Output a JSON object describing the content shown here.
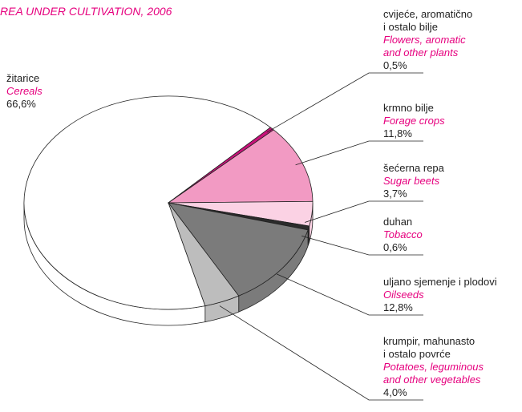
{
  "chart_data": {
    "type": "pie",
    "title": "REA UNDER CULTIVATION, 2006",
    "categories": [
      "žitarice",
      "cvijeće, aromatično\ni ostalo bilje",
      "krmno bilje",
      "šećerna repa",
      "duhan",
      "uljano sjemenje i plodovi",
      "krumpir, mahunasto\ni ostalo povrće"
    ],
    "categories_en": [
      "Cereals",
      "Flowers, aromatic\nand other plants",
      "Forage crops",
      "Sugar beets",
      "Tobacco",
      "Oilseeds",
      "Potatoes, leguminous\nand other vegetables"
    ],
    "values": [
      66.6,
      0.5,
      11.8,
      3.7,
      0.6,
      12.8,
      4.0
    ],
    "value_labels": [
      "66,6%",
      "0,5%",
      "11,8%",
      "3,7%",
      "0,6%",
      "12,8%",
      "4,0%"
    ],
    "colors": [
      "#ffffff",
      "#c8127a",
      "#f29ac3",
      "#fbd2e4",
      "#2b2b2b",
      "#7b7b7b",
      "#bdbdbd"
    ]
  }
}
